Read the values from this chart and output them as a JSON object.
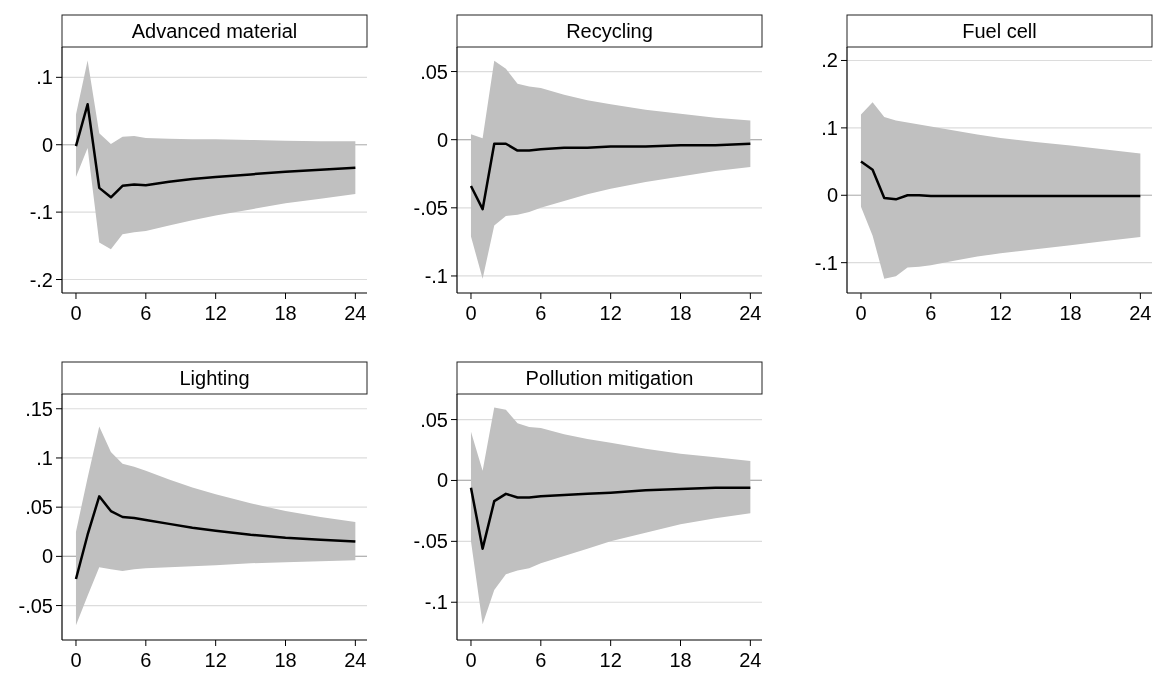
{
  "chart_data": [
    {
      "type": "line",
      "title": "Advanced material",
      "x": [
        0,
        1,
        2,
        3,
        4,
        5,
        6,
        8,
        10,
        12,
        15,
        18,
        21,
        24
      ],
      "xlim": [
        -1.2,
        25
      ],
      "xticks": [
        0,
        6,
        12,
        18,
        24
      ],
      "ylim": [
        -0.22,
        0.145
      ],
      "yticks": [
        {
          "value": -0.2,
          "label": "-.2"
        },
        {
          "value": -0.1,
          "label": "-.1"
        },
        {
          "value": 0,
          "label": "0"
        },
        {
          "value": 0.1,
          "label": ".1"
        }
      ],
      "grid": "y",
      "ref_lines": [
        {
          "axis": "y",
          "value": 0,
          "color": "#b4b4b4"
        }
      ],
      "series": [
        {
          "color": "#000000",
          "values": [
            -0.002,
            0.06,
            -0.064,
            -0.078,
            -0.061,
            -0.059,
            -0.06,
            -0.055,
            -0.051,
            -0.048,
            -0.044,
            -0.04,
            -0.037,
            -0.034
          ],
          "lower": [
            -0.048,
            -0.005,
            -0.145,
            -0.155,
            -0.133,
            -0.13,
            -0.128,
            -0.12,
            -0.112,
            -0.105,
            -0.096,
            -0.087,
            -0.08,
            -0.073
          ],
          "upper": [
            0.045,
            0.125,
            0.017,
            0.001,
            0.012,
            0.013,
            0.01,
            0.009,
            0.008,
            0.008,
            0.007,
            0.006,
            0.005,
            0.005
          ]
        }
      ]
    },
    {
      "type": "line",
      "title": "Recycling",
      "x": [
        0,
        1,
        2,
        3,
        4,
        5,
        6,
        8,
        10,
        12,
        15,
        18,
        21,
        24
      ],
      "xlim": [
        -1.2,
        25
      ],
      "xticks": [
        0,
        6,
        12,
        18,
        24
      ],
      "ylim": [
        -0.1125,
        0.068
      ],
      "yticks": [
        {
          "value": -0.1,
          "label": "-.1"
        },
        {
          "value": -0.05,
          "label": "-.05"
        },
        {
          "value": 0,
          "label": "0"
        },
        {
          "value": 0.05,
          "label": ".05"
        }
      ],
      "grid": "y",
      "ref_lines": [
        {
          "axis": "y",
          "value": 0,
          "color": "#b4b4b4"
        }
      ],
      "series": [
        {
          "color": "#000000",
          "values": [
            -0.034,
            -0.051,
            -0.003,
            -0.003,
            -0.008,
            -0.008,
            -0.007,
            -0.006,
            -0.006,
            -0.005,
            -0.005,
            -0.004,
            -0.004,
            -0.003
          ],
          "lower": [
            -0.071,
            -0.102,
            -0.063,
            -0.056,
            -0.055,
            -0.053,
            -0.05,
            -0.045,
            -0.04,
            -0.036,
            -0.031,
            -0.027,
            -0.023,
            -0.02
          ],
          "upper": [
            0.004,
            0.001,
            0.058,
            0.052,
            0.041,
            0.039,
            0.038,
            0.033,
            0.029,
            0.026,
            0.022,
            0.019,
            0.016,
            0.014
          ]
        }
      ]
    },
    {
      "type": "line",
      "title": "Fuel cell",
      "x": [
        0,
        1,
        2,
        3,
        4,
        5,
        6,
        8,
        10,
        12,
        15,
        18,
        21,
        24
      ],
      "xlim": [
        -1.2,
        25
      ],
      "xticks": [
        0,
        6,
        12,
        18,
        24
      ],
      "ylim": [
        -0.145,
        0.22
      ],
      "yticks": [
        {
          "value": -0.1,
          "label": "-.1"
        },
        {
          "value": 0,
          "label": "0"
        },
        {
          "value": 0.1,
          "label": ".1"
        },
        {
          "value": 0.2,
          "label": ".2"
        }
      ],
      "grid": "y",
      "ref_lines": [
        {
          "axis": "y",
          "value": 0,
          "color": "#b4b4b4"
        }
      ],
      "series": [
        {
          "color": "#000000",
          "values": [
            0.05,
            0.038,
            -0.004,
            -0.006,
            0,
            0,
            -0.001,
            -0.001,
            -0.001,
            -0.001,
            -0.001,
            -0.001,
            -0.001,
            -0.001
          ],
          "lower": [
            -0.017,
            -0.06,
            -0.124,
            -0.12,
            -0.107,
            -0.106,
            -0.104,
            -0.097,
            -0.091,
            -0.086,
            -0.08,
            -0.074,
            -0.068,
            -0.062
          ],
          "upper": [
            0.12,
            0.138,
            0.116,
            0.111,
            0.108,
            0.105,
            0.102,
            0.096,
            0.09,
            0.085,
            0.079,
            0.074,
            0.068,
            0.062
          ]
        }
      ]
    },
    {
      "type": "line",
      "title": "Lighting",
      "x": [
        0,
        1,
        2,
        3,
        4,
        5,
        6,
        8,
        10,
        12,
        15,
        18,
        21,
        24
      ],
      "xlim": [
        -1.2,
        25
      ],
      "xticks": [
        0,
        6,
        12,
        18,
        24
      ],
      "ylim": [
        -0.085,
        0.165
      ],
      "yticks": [
        {
          "value": -0.05,
          "label": "-.05"
        },
        {
          "value": 0,
          "label": "0"
        },
        {
          "value": 0.05,
          "label": ".05"
        },
        {
          "value": 0.1,
          "label": ".1"
        },
        {
          "value": 0.15,
          "label": ".15"
        }
      ],
      "grid": "y",
      "ref_lines": [
        {
          "axis": "y",
          "value": 0,
          "color": "#b4b4b4"
        }
      ],
      "series": [
        {
          "color": "#000000",
          "values": [
            -0.023,
            0.022,
            0.061,
            0.046,
            0.04,
            0.039,
            0.037,
            0.033,
            0.029,
            0.026,
            0.022,
            0.019,
            0.017,
            0.015
          ],
          "lower": [
            -0.07,
            -0.04,
            -0.011,
            -0.013,
            -0.015,
            -0.013,
            -0.012,
            -0.011,
            -0.01,
            -0.009,
            -0.007,
            -0.006,
            -0.005,
            -0.004
          ],
          "upper": [
            0.025,
            0.08,
            0.132,
            0.106,
            0.094,
            0.091,
            0.087,
            0.078,
            0.07,
            0.063,
            0.054,
            0.046,
            0.04,
            0.035
          ]
        }
      ]
    },
    {
      "type": "line",
      "title": "Pollution mitigation",
      "x": [
        0,
        1,
        2,
        3,
        4,
        5,
        6,
        8,
        10,
        12,
        15,
        18,
        21,
        24
      ],
      "xlim": [
        -1.2,
        25
      ],
      "xticks": [
        0,
        6,
        12,
        18,
        24
      ],
      "ylim": [
        -0.131,
        0.071
      ],
      "yticks": [
        {
          "value": -0.1,
          "label": "-.1"
        },
        {
          "value": -0.05,
          "label": "-.05"
        },
        {
          "value": 0,
          "label": "0"
        },
        {
          "value": 0.05,
          "label": ".05"
        }
      ],
      "grid": "y",
      "ref_lines": [
        {
          "axis": "y",
          "value": 0,
          "color": "#b4b4b4"
        }
      ],
      "series": [
        {
          "color": "#000000",
          "values": [
            -0.006,
            -0.056,
            -0.017,
            -0.011,
            -0.014,
            -0.014,
            -0.013,
            -0.012,
            -0.011,
            -0.01,
            -0.008,
            -0.007,
            -0.006,
            -0.006
          ],
          "lower": [
            -0.05,
            -0.118,
            -0.09,
            -0.077,
            -0.074,
            -0.072,
            -0.068,
            -0.062,
            -0.056,
            -0.05,
            -0.043,
            -0.036,
            -0.031,
            -0.027
          ],
          "upper": [
            0.04,
            0.008,
            0.06,
            0.058,
            0.047,
            0.044,
            0.043,
            0.038,
            0.034,
            0.031,
            0.026,
            0.022,
            0.019,
            0.016
          ]
        }
      ]
    }
  ]
}
